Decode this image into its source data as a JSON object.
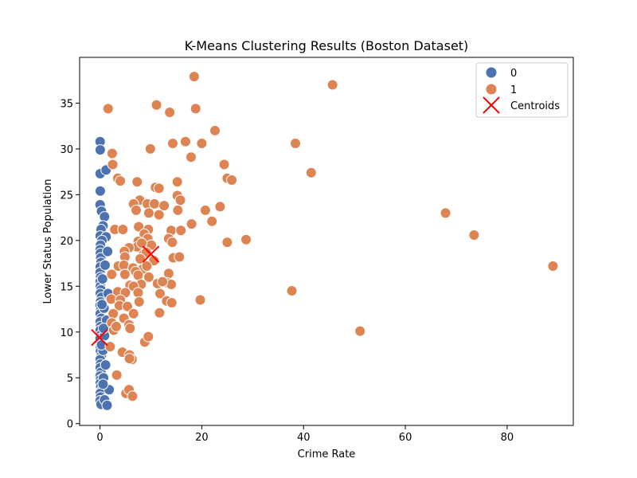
{
  "chart_data": {
    "type": "scatter",
    "title": "K-Means Clustering Results (Boston Dataset)",
    "xlabel": "Crime Rate",
    "ylabel": "Lower Status Population",
    "xlim": [
      -4,
      93
    ],
    "ylim": [
      -0.2,
      40
    ],
    "xticks": [
      0,
      20,
      40,
      60,
      80
    ],
    "yticks": [
      0,
      5,
      10,
      15,
      20,
      25,
      30,
      35
    ],
    "grid": false,
    "legend_position": "top-right",
    "legend_title": "",
    "series": [
      {
        "name": "0",
        "color": "#4c72b0",
        "points": [
          [
            0.03,
            30.8
          ],
          [
            0.05,
            29.9
          ],
          [
            0.04,
            27.3
          ],
          [
            0.06,
            25.4
          ],
          [
            0.02,
            23.9
          ],
          [
            0.3,
            23.2
          ],
          [
            0.9,
            22.6
          ],
          [
            0.6,
            21.6
          ],
          [
            0.2,
            21.2
          ],
          [
            0.05,
            20.5
          ],
          [
            1.2,
            20.4
          ],
          [
            0.4,
            20.0
          ],
          [
            0.1,
            19.5
          ],
          [
            0.03,
            19.0
          ],
          [
            0.08,
            18.6
          ],
          [
            0.15,
            18.1
          ],
          [
            0.2,
            17.6
          ],
          [
            0.05,
            17.1
          ],
          [
            0.02,
            16.5
          ],
          [
            0.12,
            16.0
          ],
          [
            0.03,
            15.5
          ],
          [
            0.07,
            15.0
          ],
          [
            0.2,
            14.6
          ],
          [
            0.05,
            14.2
          ],
          [
            0.3,
            13.8
          ],
          [
            0.1,
            13.3
          ],
          [
            0.02,
            12.9
          ],
          [
            0.15,
            12.4
          ],
          [
            0.05,
            12.0
          ],
          [
            0.25,
            11.5
          ],
          [
            0.03,
            11.1
          ],
          [
            0.1,
            10.6
          ],
          [
            0.05,
            10.2
          ],
          [
            0.2,
            9.7
          ],
          [
            0.03,
            9.3
          ],
          [
            0.15,
            8.8
          ],
          [
            0.05,
            8.3
          ],
          [
            0.1,
            7.9
          ],
          [
            0.25,
            7.4
          ],
          [
            0.03,
            7.0
          ],
          [
            0.1,
            6.5
          ],
          [
            0.05,
            6.1
          ],
          [
            0.2,
            5.6
          ],
          [
            0.03,
            5.2
          ],
          [
            0.1,
            4.8
          ],
          [
            0.05,
            4.4
          ],
          [
            0.15,
            4.0
          ],
          [
            0.3,
            3.6
          ],
          [
            0.05,
            3.3
          ],
          [
            0.1,
            2.9
          ],
          [
            0.03,
            2.5
          ],
          [
            0.2,
            2.1
          ],
          [
            0.9,
            2.6
          ],
          [
            1.4,
            2.0
          ],
          [
            1.8,
            3.7
          ],
          [
            0.7,
            5.0
          ],
          [
            1.1,
            6.4
          ],
          [
            0.6,
            8.0
          ],
          [
            0.9,
            9.6
          ],
          [
            1.3,
            11.3
          ],
          [
            0.8,
            12.6
          ],
          [
            1.6,
            14.2
          ],
          [
            0.5,
            15.8
          ],
          [
            1.0,
            17.3
          ],
          [
            1.5,
            18.8
          ],
          [
            0.4,
            13.0
          ],
          [
            0.7,
            10.4
          ],
          [
            0.3,
            8.6
          ],
          [
            0.6,
            4.3
          ],
          [
            1.2,
            27.7
          ]
        ]
      },
      {
        "name": "1",
        "color": "#dd8452",
        "points": [
          [
            18.5,
            37.9
          ],
          [
            45.7,
            37.0
          ],
          [
            1.6,
            34.4
          ],
          [
            11.1,
            34.8
          ],
          [
            13.7,
            34.0
          ],
          [
            18.8,
            34.4
          ],
          [
            22.6,
            32.0
          ],
          [
            16.8,
            30.8
          ],
          [
            14.3,
            30.6
          ],
          [
            20.0,
            30.6
          ],
          [
            38.4,
            30.6
          ],
          [
            9.9,
            30.0
          ],
          [
            2.4,
            29.5
          ],
          [
            17.9,
            29.1
          ],
          [
            2.5,
            28.3
          ],
          [
            24.4,
            28.3
          ],
          [
            41.5,
            27.4
          ],
          [
            3.5,
            26.8
          ],
          [
            25.0,
            26.8
          ],
          [
            25.9,
            26.6
          ],
          [
            4.0,
            26.5
          ],
          [
            7.3,
            26.4
          ],
          [
            15.2,
            26.4
          ],
          [
            10.9,
            25.8
          ],
          [
            11.6,
            25.7
          ],
          [
            15.2,
            24.9
          ],
          [
            15.8,
            24.4
          ],
          [
            7.8,
            24.4
          ],
          [
            6.6,
            24.0
          ],
          [
            9.3,
            24.0
          ],
          [
            10.7,
            24.0
          ],
          [
            12.6,
            23.8
          ],
          [
            23.6,
            23.7
          ],
          [
            20.7,
            23.3
          ],
          [
            15.3,
            23.3
          ],
          [
            7.1,
            23.3
          ],
          [
            9.6,
            23.0
          ],
          [
            11.6,
            22.8
          ],
          [
            67.9,
            23.0
          ],
          [
            18.0,
            21.8
          ],
          [
            22.0,
            22.1
          ],
          [
            73.5,
            20.6
          ],
          [
            7.6,
            21.5
          ],
          [
            14.0,
            21.1
          ],
          [
            15.9,
            21.1
          ],
          [
            2.9,
            21.2
          ],
          [
            4.5,
            21.2
          ],
          [
            9.5,
            21.2
          ],
          [
            8.7,
            20.7
          ],
          [
            9.4,
            20.2
          ],
          [
            13.5,
            20.2
          ],
          [
            14.2,
            19.8
          ],
          [
            7.5,
            19.9
          ],
          [
            25.0,
            19.8
          ],
          [
            28.7,
            20.1
          ],
          [
            10.1,
            19.5
          ],
          [
            7.3,
            19.3
          ],
          [
            5.7,
            19.2
          ],
          [
            4.8,
            18.8
          ],
          [
            8.6,
            18.5
          ],
          [
            9.1,
            18.7
          ],
          [
            14.4,
            18.1
          ],
          [
            15.6,
            18.2
          ],
          [
            4.9,
            18.2
          ],
          [
            7.9,
            18.0
          ],
          [
            10.6,
            17.8
          ],
          [
            3.6,
            17.2
          ],
          [
            4.7,
            17.3
          ],
          [
            6.5,
            17.0
          ],
          [
            8.4,
            16.9
          ],
          [
            7.0,
            16.6
          ],
          [
            2.3,
            16.3
          ],
          [
            4.9,
            16.3
          ],
          [
            7.5,
            16.2
          ],
          [
            13.5,
            16.4
          ],
          [
            9.6,
            16.0
          ],
          [
            8.1,
            15.2
          ],
          [
            11.3,
            15.3
          ],
          [
            13.1,
            15.4
          ],
          [
            14.0,
            15.2
          ],
          [
            5.9,
            15.1
          ],
          [
            6.6,
            15.0
          ],
          [
            3.5,
            14.4
          ],
          [
            5.0,
            14.3
          ],
          [
            7.5,
            14.3
          ],
          [
            11.8,
            14.2
          ],
          [
            12.3,
            15.5
          ],
          [
            2.2,
            13.6
          ],
          [
            4.0,
            13.5
          ],
          [
            7.7,
            13.3
          ],
          [
            13.1,
            13.4
          ],
          [
            14.1,
            13.2
          ],
          [
            19.7,
            13.5
          ],
          [
            37.7,
            14.5
          ],
          [
            89.0,
            17.2
          ],
          [
            3.8,
            12.9
          ],
          [
            5.4,
            12.8
          ],
          [
            6.6,
            12.0
          ],
          [
            11.7,
            12.1
          ],
          [
            2.6,
            12.0
          ],
          [
            2.3,
            11.0
          ],
          [
            4.7,
            11.5
          ],
          [
            5.7,
            10.8
          ],
          [
            2.7,
            10.2
          ],
          [
            3.2,
            10.6
          ],
          [
            5.9,
            10.4
          ],
          [
            8.8,
            8.9
          ],
          [
            9.5,
            9.5
          ],
          [
            51.1,
            10.1
          ],
          [
            4.4,
            7.8
          ],
          [
            5.8,
            7.5
          ],
          [
            6.3,
            7.0
          ],
          [
            5.8,
            7.1
          ],
          [
            3.3,
            5.3
          ],
          [
            5.1,
            3.3
          ],
          [
            5.7,
            3.7
          ],
          [
            6.4,
            3.0
          ],
          [
            2.0,
            8.4
          ],
          [
            9.2,
            17.2
          ],
          [
            8.2,
            19.7
          ]
        ]
      }
    ],
    "centroids": {
      "name": "Centroids",
      "color": "#ff0000",
      "points": [
        [
          -0.1,
          9.4
        ],
        [
          10.0,
          18.5
        ]
      ]
    }
  }
}
